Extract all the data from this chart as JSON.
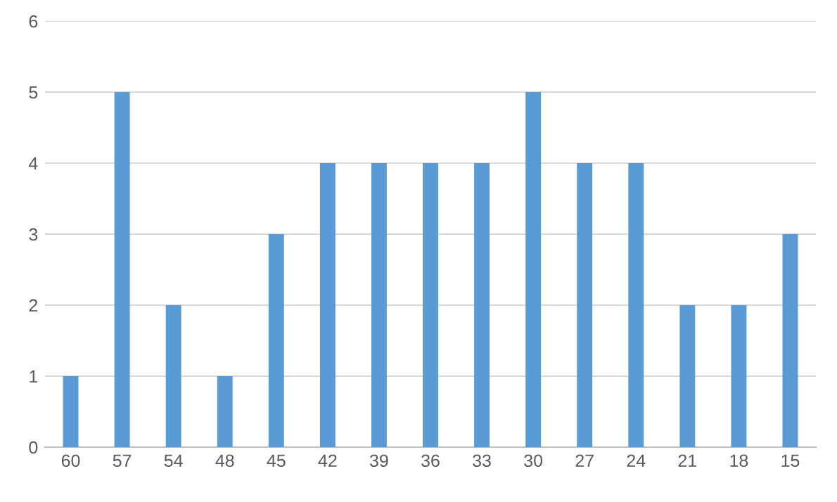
{
  "chart_data": {
    "type": "bar",
    "categories": [
      "60",
      "57",
      "54",
      "48",
      "45",
      "42",
      "39",
      "36",
      "33",
      "30",
      "27",
      "24",
      "21",
      "18",
      "15"
    ],
    "values": [
      1,
      5,
      2,
      1,
      3,
      4,
      4,
      4,
      4,
      5,
      4,
      4,
      2,
      2,
      3
    ],
    "color": "#5b9bd5",
    "ylim": [
      0,
      6
    ],
    "yticks": [
      0,
      1,
      2,
      3,
      4,
      5,
      6
    ],
    "grid": "y",
    "legend": false
  }
}
